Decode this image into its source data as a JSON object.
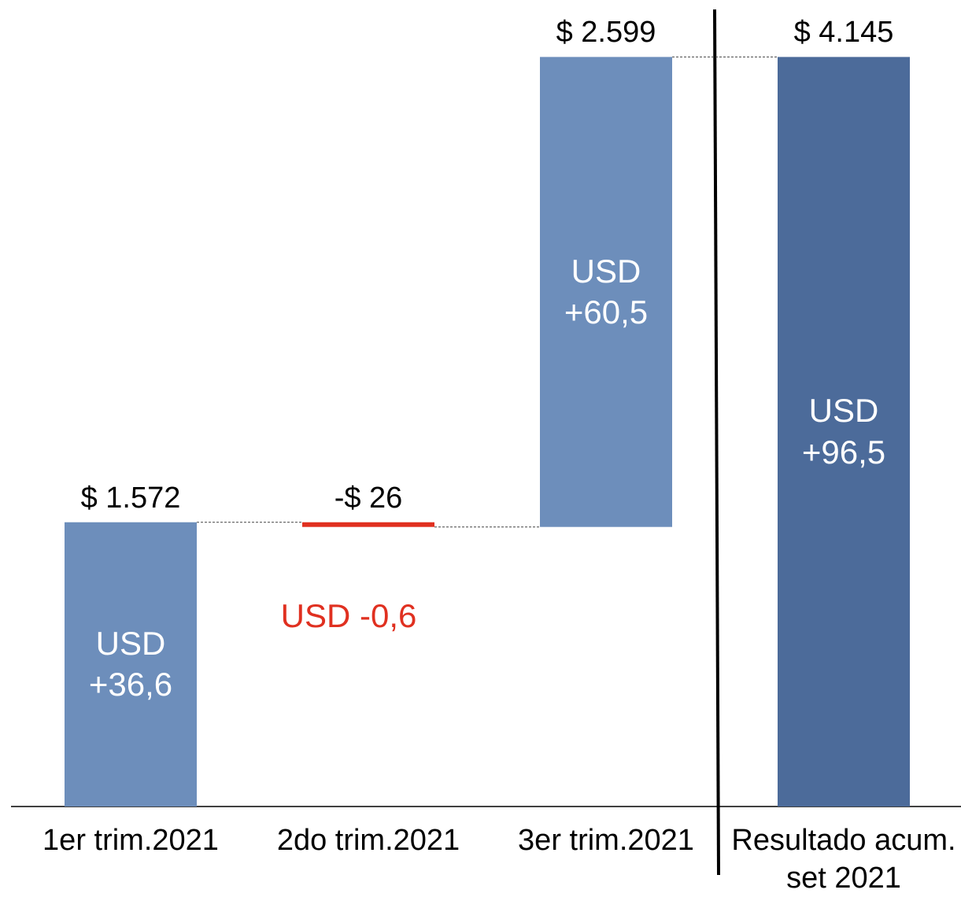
{
  "chart_data": {
    "type": "waterfall",
    "categories": [
      "1er trim.2021",
      "2do trim.2021",
      "3er trim.2021",
      "Resultado acum. set 2021"
    ],
    "values": [
      1572,
      -26,
      2599,
      4145
    ],
    "value_labels": [
      "$ 1.572",
      "-$ 26",
      "$ 2.599",
      "$ 4.145"
    ],
    "annotations": [
      "USD +36,6",
      "USD -0,6",
      "USD +60,5",
      "USD +96,5"
    ],
    "is_total": [
      false,
      false,
      false,
      true
    ],
    "colors": {
      "increase": "#6d8ebb",
      "decrease": "#e03020",
      "total": "#4c6b9a"
    },
    "ylim": [
      0,
      4460
    ]
  }
}
